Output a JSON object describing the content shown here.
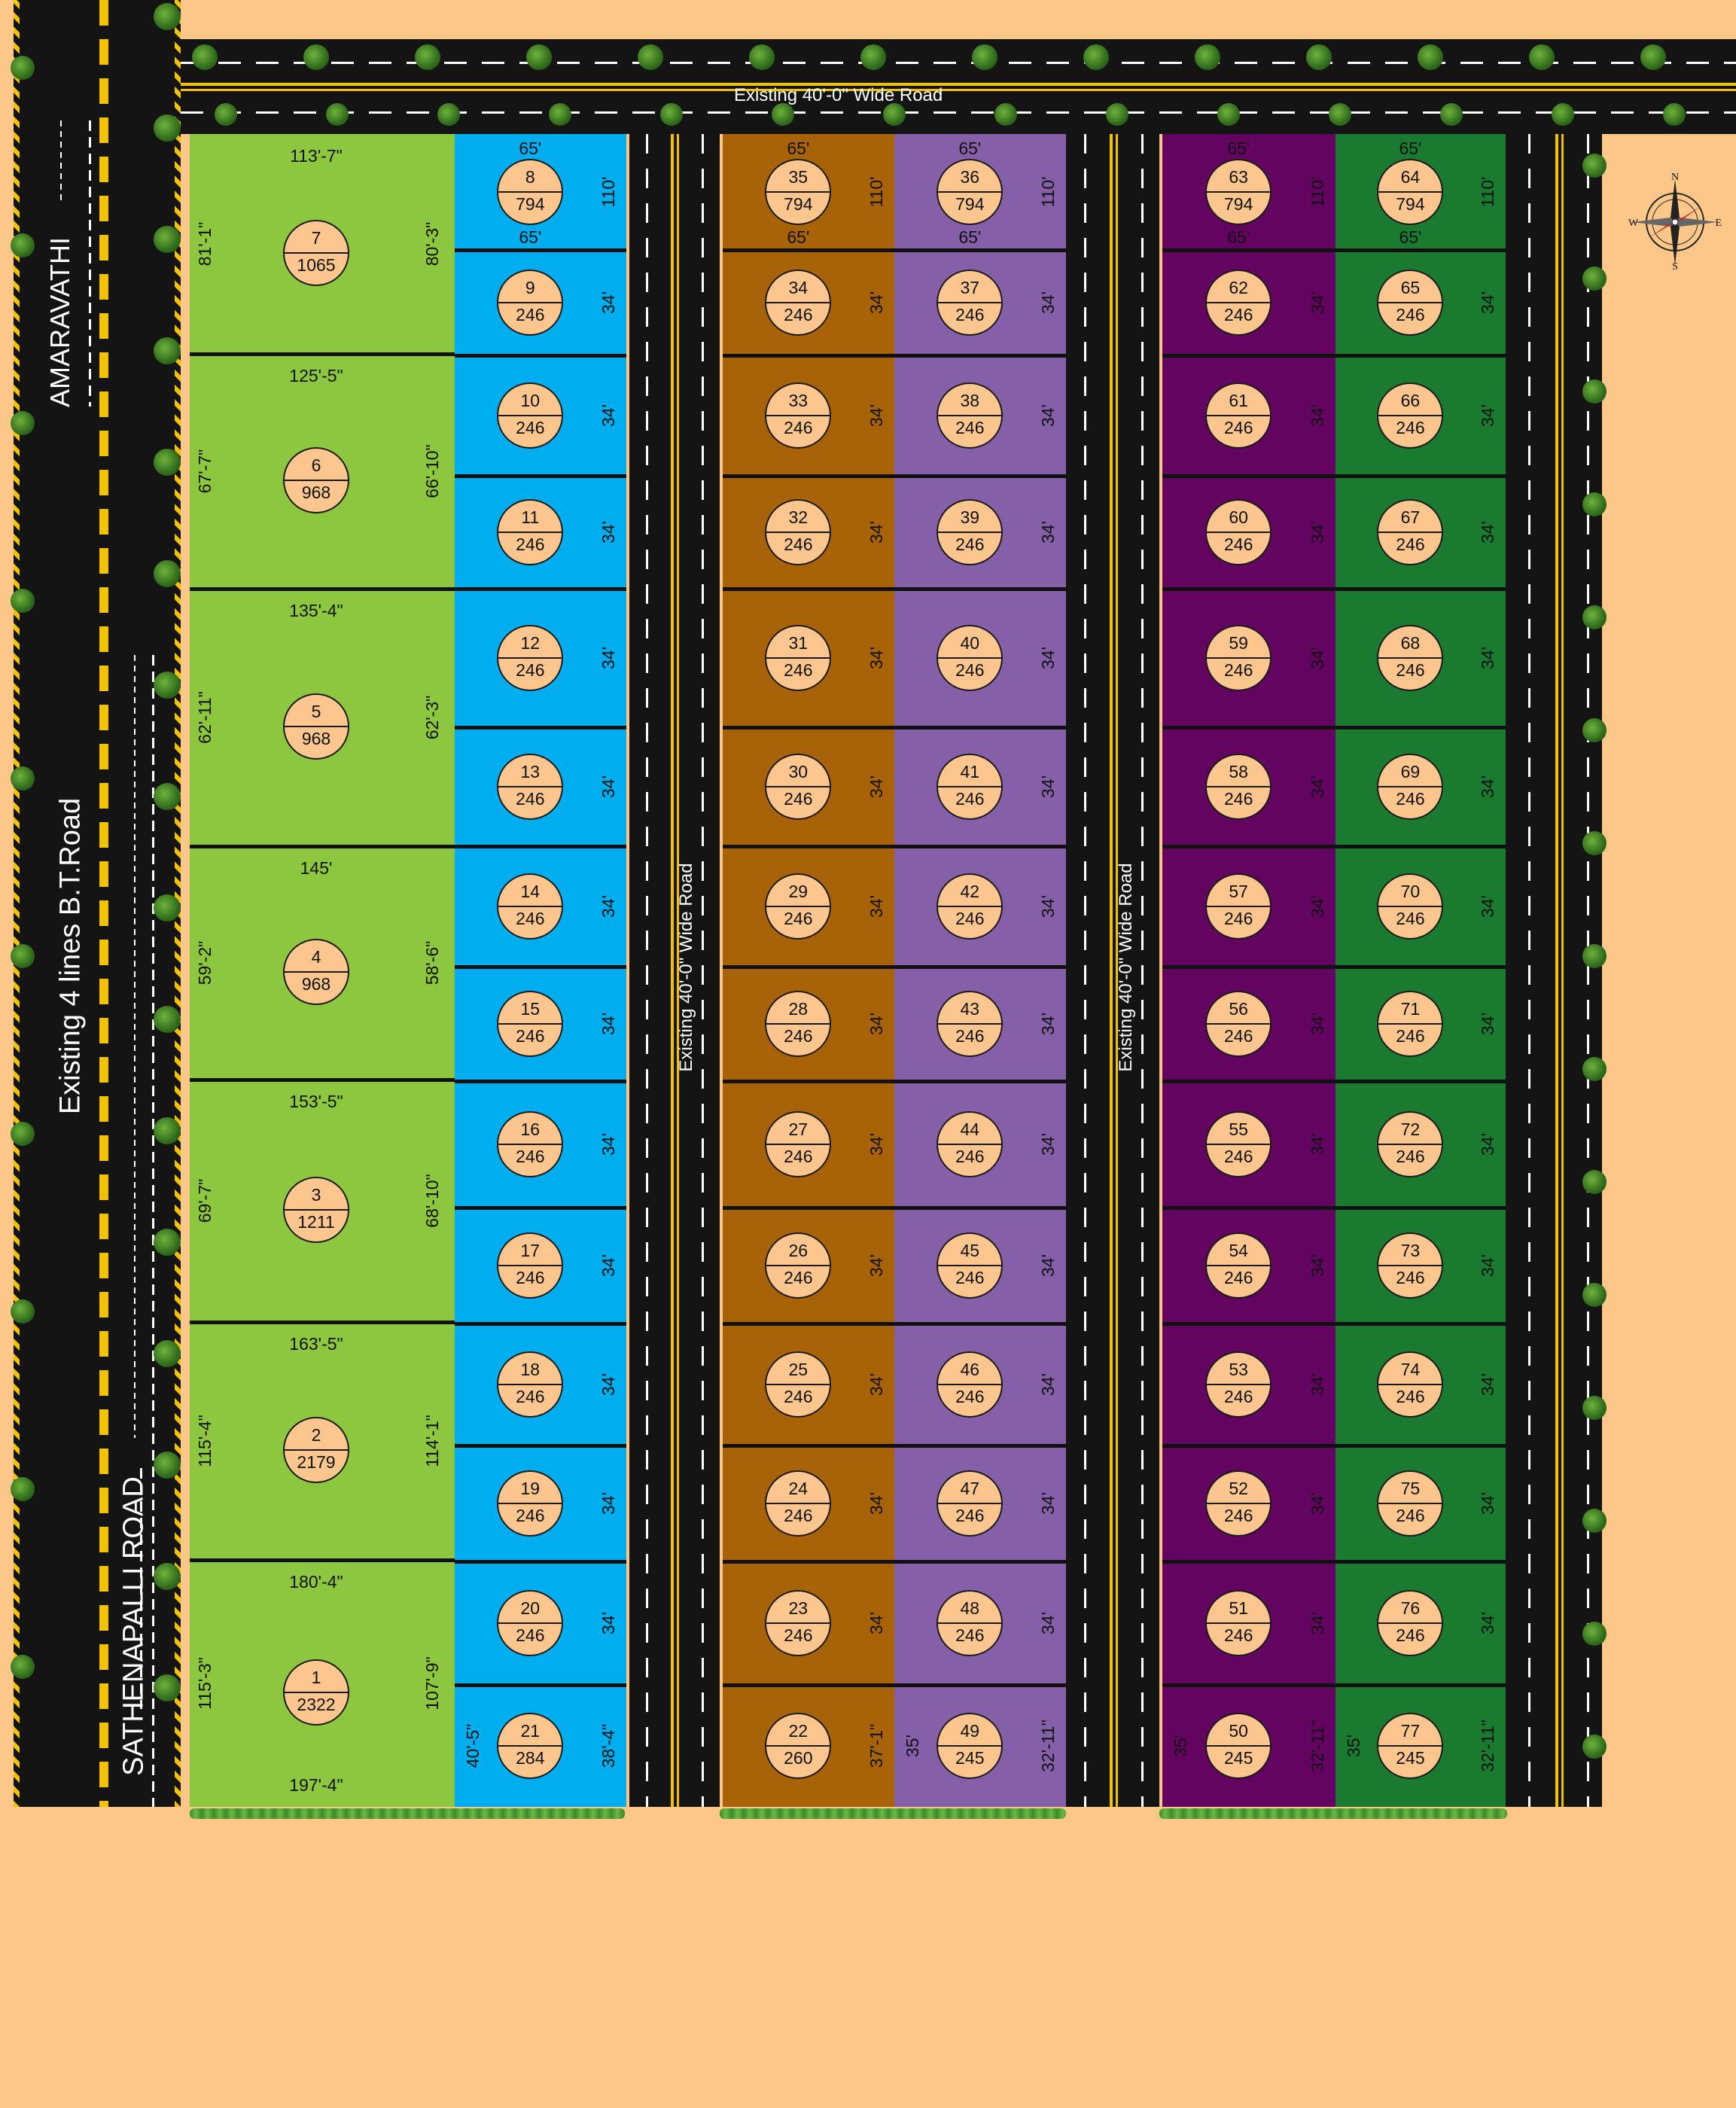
{
  "road_labels": {
    "main_road": "Existing 4 lines B.T.Road",
    "amaravathi": "AMARAVATHI",
    "sathenapalli": "SATHENAPALLI ROAD",
    "top_road": "Existing 40'-0\"  Wide Road",
    "internal_road_1": "Existing 40'-0\"  Wide Road",
    "internal_road_2": "Existing 40'-0\"  Wide Road"
  },
  "compass": {
    "n": "N",
    "s": "S",
    "e": "E",
    "w": "W"
  },
  "colors": {
    "background": "#fdc78a",
    "road": "#141414",
    "road_marking": "#f2c200",
    "lime": "#8dc63f",
    "blue": "#00aeef",
    "brown": "#a86309",
    "violet": "#8560a8",
    "purple": "#630460",
    "green": "#1a7b30",
    "plot_disc": "#fcc68e"
  },
  "large_plots": [
    {
      "no": "7",
      "area": "1065",
      "top": "113'-7\"",
      "left": "81'-1\"",
      "right": "80'-3\""
    },
    {
      "no": "6",
      "area": "968",
      "top": "125'-5\"",
      "left": "67'-7\"",
      "right": "66'-10\""
    },
    {
      "no": "5",
      "area": "968",
      "top": "135'-4\"",
      "left": "62'-11\"",
      "right": "62'-3\""
    },
    {
      "no": "4",
      "area": "968",
      "top": "145'",
      "left": "59'-2\"",
      "right": "58'-6\""
    },
    {
      "no": "3",
      "area": "1211",
      "top": "153'-5\"",
      "left": "69'-7\"",
      "right": "68'-10\""
    },
    {
      "no": "2",
      "area": "2179",
      "top": "163'-5\"",
      "left": "115'-4\"",
      "right": "114'-1\""
    },
    {
      "no": "1",
      "area": "2322",
      "top": "180'-4\"",
      "left": "115'-3\"",
      "right": "107'-9\"",
      "bottom": "197'-4\""
    }
  ],
  "plot_columns": [
    {
      "color": "blue",
      "plots": [
        {
          "no": "8",
          "area": "794"
        },
        {
          "no": "9",
          "area": "246"
        },
        {
          "no": "10",
          "area": "246"
        },
        {
          "no": "11",
          "area": "246"
        },
        {
          "no": "12",
          "area": "246"
        },
        {
          "no": "13",
          "area": "246"
        },
        {
          "no": "14",
          "area": "246"
        },
        {
          "no": "15",
          "area": "246"
        },
        {
          "no": "16",
          "area": "246"
        },
        {
          "no": "17",
          "area": "246"
        },
        {
          "no": "18",
          "area": "246"
        },
        {
          "no": "19",
          "area": "246"
        },
        {
          "no": "20",
          "area": "246"
        },
        {
          "no": "21",
          "area": "284"
        }
      ],
      "first_top": "65'",
      "first_bottom": "65'",
      "first_side": "110'",
      "side": "34'",
      "last_left": "40'-5\"",
      "last_right": "38'-4\""
    },
    {
      "color": "brown",
      "plots": [
        {
          "no": "35",
          "area": "794"
        },
        {
          "no": "34",
          "area": "246"
        },
        {
          "no": "33",
          "area": "246"
        },
        {
          "no": "32",
          "area": "246"
        },
        {
          "no": "31",
          "area": "246"
        },
        {
          "no": "30",
          "area": "246"
        },
        {
          "no": "29",
          "area": "246"
        },
        {
          "no": "28",
          "area": "246"
        },
        {
          "no": "27",
          "area": "246"
        },
        {
          "no": "26",
          "area": "246"
        },
        {
          "no": "25",
          "area": "246"
        },
        {
          "no": "24",
          "area": "246"
        },
        {
          "no": "23",
          "area": "246"
        },
        {
          "no": "22",
          "area": "260"
        }
      ],
      "first_top": "65'",
      "first_bottom": "65'",
      "first_side": "110'",
      "side": "34'",
      "last_left": "",
      "last_right": "37'-1\""
    },
    {
      "color": "violet",
      "plots": [
        {
          "no": "36",
          "area": "794"
        },
        {
          "no": "37",
          "area": "246"
        },
        {
          "no": "38",
          "area": "246"
        },
        {
          "no": "39",
          "area": "246"
        },
        {
          "no": "40",
          "area": "246"
        },
        {
          "no": "41",
          "area": "246"
        },
        {
          "no": "42",
          "area": "246"
        },
        {
          "no": "43",
          "area": "246"
        },
        {
          "no": "44",
          "area": "246"
        },
        {
          "no": "45",
          "area": "246"
        },
        {
          "no": "46",
          "area": "246"
        },
        {
          "no": "47",
          "area": "246"
        },
        {
          "no": "48",
          "area": "246"
        },
        {
          "no": "49",
          "area": "245"
        }
      ],
      "first_top": "65'",
      "first_bottom": "65'",
      "first_side": "110'",
      "side": "34'",
      "last_left": "35'",
      "last_right": "32'-11\""
    },
    {
      "color": "purple",
      "plots": [
        {
          "no": "63",
          "area": "794"
        },
        {
          "no": "62",
          "area": "246"
        },
        {
          "no": "61",
          "area": "246"
        },
        {
          "no": "60",
          "area": "246"
        },
        {
          "no": "59",
          "area": "246"
        },
        {
          "no": "58",
          "area": "246"
        },
        {
          "no": "57",
          "area": "246"
        },
        {
          "no": "56",
          "area": "246"
        },
        {
          "no": "55",
          "area": "246"
        },
        {
          "no": "54",
          "area": "246"
        },
        {
          "no": "53",
          "area": "246"
        },
        {
          "no": "52",
          "area": "246"
        },
        {
          "no": "51",
          "area": "246"
        },
        {
          "no": "50",
          "area": "245"
        }
      ],
      "first_top": "65'",
      "first_bottom": "65'",
      "first_side": "110'",
      "side": "34'",
      "last_left": "35'",
      "last_right": "32'-11\""
    },
    {
      "color": "green",
      "plots": [
        {
          "no": "64",
          "area": "794"
        },
        {
          "no": "65",
          "area": "246"
        },
        {
          "no": "66",
          "area": "246"
        },
        {
          "no": "67",
          "area": "246"
        },
        {
          "no": "68",
          "area": "246"
        },
        {
          "no": "69",
          "area": "246"
        },
        {
          "no": "70",
          "area": "246"
        },
        {
          "no": "71",
          "area": "246"
        },
        {
          "no": "72",
          "area": "246"
        },
        {
          "no": "73",
          "area": "246"
        },
        {
          "no": "74",
          "area": "246"
        },
        {
          "no": "75",
          "area": "246"
        },
        {
          "no": "76",
          "area": "246"
        },
        {
          "no": "77",
          "area": "245"
        }
      ],
      "first_top": "65'",
      "first_bottom": "65'",
      "first_side": "110'",
      "side": "34'",
      "last_left": "35'",
      "last_right": "32'-11\""
    }
  ]
}
